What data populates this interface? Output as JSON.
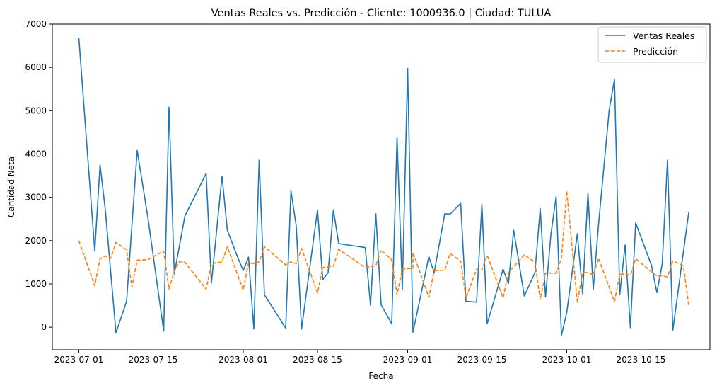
{
  "chart_data": {
    "type": "line",
    "title": "Ventas Reales vs. Predicción - Cliente: 1000936.0 | Ciudad: TULUA",
    "xlabel": "Fecha",
    "ylabel": "Cantidad Neta",
    "x_ticks": [
      "2023-07-01",
      "2023-07-15",
      "2023-08-01",
      "2023-08-15",
      "2023-09-01",
      "2023-09-15",
      "2023-10-01",
      "2023-10-15"
    ],
    "y_ticks": [
      0,
      1000,
      2000,
      3000,
      4000,
      5000,
      6000,
      7000
    ],
    "xlim": [
      "2023-06-26",
      "2023-10-28"
    ],
    "ylim": [
      -520,
      7000
    ],
    "legend_position": "top-right",
    "grid": false,
    "series": [
      {
        "name": "Ventas Reales",
        "color": "#1f77b4",
        "style": "solid",
        "points": [
          [
            "2023-07-01",
            6680
          ],
          [
            "2023-07-04",
            1760
          ],
          [
            "2023-07-05",
            3750
          ],
          [
            "2023-07-06",
            2700
          ],
          [
            "2023-07-08",
            -130
          ],
          [
            "2023-07-10",
            600
          ],
          [
            "2023-07-12",
            4080
          ],
          [
            "2023-07-14",
            2550
          ],
          [
            "2023-07-17",
            -90
          ],
          [
            "2023-07-18",
            5080
          ],
          [
            "2023-07-19",
            1230
          ],
          [
            "2023-07-21",
            2570
          ],
          [
            "2023-07-25",
            3550
          ],
          [
            "2023-07-26",
            1020
          ],
          [
            "2023-07-28",
            3490
          ],
          [
            "2023-07-29",
            2240
          ],
          [
            "2023-07-31",
            1600
          ],
          [
            "2023-08-01",
            1310
          ],
          [
            "2023-08-02",
            1620
          ],
          [
            "2023-08-03",
            -40
          ],
          [
            "2023-08-04",
            3860
          ],
          [
            "2023-08-05",
            750
          ],
          [
            "2023-08-09",
            -20
          ],
          [
            "2023-08-10",
            3150
          ],
          [
            "2023-08-11",
            2330
          ],
          [
            "2023-08-12",
            -40
          ],
          [
            "2023-08-15",
            2710
          ],
          [
            "2023-08-16",
            1100
          ],
          [
            "2023-08-17",
            1260
          ],
          [
            "2023-08-18",
            2710
          ],
          [
            "2023-08-19",
            1930
          ],
          [
            "2023-08-24",
            1840
          ],
          [
            "2023-08-25",
            510
          ],
          [
            "2023-08-26",
            2620
          ],
          [
            "2023-08-27",
            520
          ],
          [
            "2023-08-29",
            80
          ],
          [
            "2023-08-30",
            4380
          ],
          [
            "2023-08-31",
            880
          ],
          [
            "2023-09-01",
            5980
          ],
          [
            "2023-09-02",
            -120
          ],
          [
            "2023-09-05",
            1630
          ],
          [
            "2023-09-06",
            1260
          ],
          [
            "2023-09-08",
            2620
          ],
          [
            "2023-09-09",
            2610
          ],
          [
            "2023-09-11",
            2860
          ],
          [
            "2023-09-12",
            600
          ],
          [
            "2023-09-14",
            580
          ],
          [
            "2023-09-15",
            2840
          ],
          [
            "2023-09-16",
            80
          ],
          [
            "2023-09-19",
            1340
          ],
          [
            "2023-09-20",
            1010
          ],
          [
            "2023-09-21",
            2240
          ],
          [
            "2023-09-23",
            720
          ],
          [
            "2023-09-25",
            1260
          ],
          [
            "2023-09-26",
            2740
          ],
          [
            "2023-09-27",
            700
          ],
          [
            "2023-09-28",
            2130
          ],
          [
            "2023-09-29",
            3020
          ],
          [
            "2023-09-30",
            -190
          ],
          [
            "2023-10-01",
            340
          ],
          [
            "2023-10-03",
            2160
          ],
          [
            "2023-10-04",
            770
          ],
          [
            "2023-10-05",
            3100
          ],
          [
            "2023-10-06",
            870
          ],
          [
            "2023-10-07",
            2380
          ],
          [
            "2023-10-09",
            5010
          ],
          [
            "2023-10-10",
            5720
          ],
          [
            "2023-10-11",
            750
          ],
          [
            "2023-10-12",
            1900
          ],
          [
            "2023-10-13",
            -10
          ],
          [
            "2023-10-14",
            2410
          ],
          [
            "2023-10-17",
            1420
          ],
          [
            "2023-10-18",
            800
          ],
          [
            "2023-10-19",
            1460
          ],
          [
            "2023-10-20",
            3860
          ],
          [
            "2023-10-21",
            -70
          ],
          [
            "2023-10-24",
            2650
          ]
        ]
      },
      {
        "name": "Predicción",
        "color": "#ff7f0e",
        "style": "dashed",
        "points": [
          [
            "2023-07-01",
            2000
          ],
          [
            "2023-07-04",
            960
          ],
          [
            "2023-07-05",
            1580
          ],
          [
            "2023-07-06",
            1650
          ],
          [
            "2023-07-07",
            1590
          ],
          [
            "2023-07-08",
            1960
          ],
          [
            "2023-07-10",
            1790
          ],
          [
            "2023-07-11",
            930
          ],
          [
            "2023-07-12",
            1550
          ],
          [
            "2023-07-14",
            1560
          ],
          [
            "2023-07-17",
            1760
          ],
          [
            "2023-07-18",
            880
          ],
          [
            "2023-07-19",
            1300
          ],
          [
            "2023-07-20",
            1520
          ],
          [
            "2023-07-21",
            1500
          ],
          [
            "2023-07-25",
            880
          ],
          [
            "2023-07-26",
            1450
          ],
          [
            "2023-07-27",
            1500
          ],
          [
            "2023-07-28",
            1500
          ],
          [
            "2023-07-29",
            1860
          ],
          [
            "2023-08-01",
            860
          ],
          [
            "2023-08-02",
            1490
          ],
          [
            "2023-08-03",
            1470
          ],
          [
            "2023-08-04",
            1510
          ],
          [
            "2023-08-05",
            1860
          ],
          [
            "2023-08-09",
            1440
          ],
          [
            "2023-08-10",
            1510
          ],
          [
            "2023-08-11",
            1470
          ],
          [
            "2023-08-12",
            1820
          ],
          [
            "2023-08-15",
            790
          ],
          [
            "2023-08-16",
            1380
          ],
          [
            "2023-08-18",
            1410
          ],
          [
            "2023-08-19",
            1800
          ],
          [
            "2023-08-24",
            1380
          ],
          [
            "2023-08-26",
            1420
          ],
          [
            "2023-08-27",
            1780
          ],
          [
            "2023-08-29",
            1560
          ],
          [
            "2023-08-30",
            750
          ],
          [
            "2023-08-31",
            1340
          ],
          [
            "2023-09-02",
            1360
          ],
          [
            "2023-09-02",
            1730
          ],
          [
            "2023-09-05",
            690
          ],
          [
            "2023-09-06",
            1300
          ],
          [
            "2023-09-08",
            1320
          ],
          [
            "2023-09-09",
            1700
          ],
          [
            "2023-09-11",
            1530
          ],
          [
            "2023-09-12",
            680
          ],
          [
            "2023-09-14",
            1340
          ],
          [
            "2023-09-15",
            1320
          ],
          [
            "2023-09-16",
            1660
          ],
          [
            "2023-09-19",
            680
          ],
          [
            "2023-09-20",
            1260
          ],
          [
            "2023-09-23",
            1670
          ],
          [
            "2023-09-25",
            1500
          ],
          [
            "2023-09-26",
            640
          ],
          [
            "2023-09-27",
            1250
          ],
          [
            "2023-09-28",
            1250
          ],
          [
            "2023-09-29",
            1240
          ],
          [
            "2023-09-30",
            1590
          ],
          [
            "2023-10-01",
            3140
          ],
          [
            "2023-10-03",
            580
          ],
          [
            "2023-10-04",
            1250
          ],
          [
            "2023-10-05",
            1270
          ],
          [
            "2023-10-06",
            1210
          ],
          [
            "2023-10-07",
            1590
          ],
          [
            "2023-10-10",
            590
          ],
          [
            "2023-10-11",
            1220
          ],
          [
            "2023-10-12",
            1230
          ],
          [
            "2023-10-13",
            1200
          ],
          [
            "2023-10-14",
            1580
          ],
          [
            "2023-10-18",
            1180
          ],
          [
            "2023-10-19",
            1190
          ],
          [
            "2023-10-20",
            1160
          ],
          [
            "2023-10-21",
            1530
          ],
          [
            "2023-10-23",
            1420
          ],
          [
            "2023-10-24",
            500
          ]
        ]
      }
    ]
  }
}
